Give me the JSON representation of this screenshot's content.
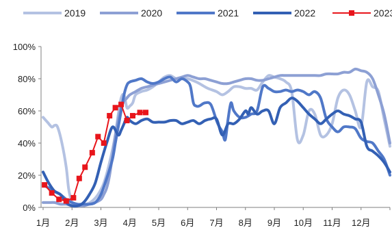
{
  "chart_data": {
    "type": "line",
    "title": "",
    "xlabel": "",
    "ylabel": "",
    "x_ticks": [
      "1月",
      "2月",
      "3月",
      "4月",
      "5月",
      "6月",
      "7月",
      "8月",
      "9月",
      "10月",
      "11月",
      "12月"
    ],
    "y_ticks": [
      "0%",
      "20%",
      "40%",
      "60%",
      "80%",
      "100%"
    ],
    "xlim": [
      0,
      12
    ],
    "ylim": [
      0,
      100
    ],
    "grid": false,
    "legend_position": "top",
    "series": [
      {
        "name": "2019",
        "color": "#b4c2e2",
        "marker": "none",
        "x": [
          0.0,
          0.15,
          0.3,
          0.4,
          0.5,
          0.65,
          0.8,
          0.88,
          0.95,
          1.0,
          1.05,
          1.1,
          1.2,
          1.3,
          1.5,
          1.7,
          1.9,
          2.1,
          2.3,
          2.5,
          2.6,
          2.7,
          2.8,
          2.9,
          3.0,
          3.1,
          3.2,
          3.4,
          3.6,
          3.8,
          4.0,
          4.2,
          4.4,
          4.6,
          4.8,
          5.0,
          5.3,
          5.5,
          5.7,
          6.0,
          6.2,
          6.4,
          6.6,
          6.8,
          7.0,
          7.2,
          7.4,
          7.6,
          7.8,
          8.0,
          8.2,
          8.4,
          8.6,
          8.8,
          9.0,
          9.2,
          9.4,
          9.6,
          9.8,
          10.0,
          10.2,
          10.4,
          10.6,
          10.8,
          11.0,
          11.2,
          11.4,
          11.6,
          11.8,
          12.0
        ],
        "y": [
          56,
          53,
          50,
          51,
          50,
          40,
          25,
          12,
          6,
          3,
          2,
          2,
          1,
          1,
          2,
          4,
          8,
          15,
          28,
          45,
          58,
          68,
          70,
          62,
          63,
          65,
          70,
          72,
          73,
          75,
          78,
          81,
          82,
          80,
          80,
          80,
          78,
          76,
          74,
          72,
          70,
          72,
          75,
          75,
          74,
          74,
          73,
          78,
          82,
          81,
          80,
          78,
          72,
          42,
          45,
          60,
          58,
          45,
          45,
          52,
          68,
          73,
          70,
          60,
          50,
          78,
          75,
          72,
          55,
          38
        ]
      },
      {
        "name": "2020",
        "color": "#8da0d4",
        "marker": "none",
        "x": [
          0.0,
          0.2,
          0.4,
          0.6,
          0.8,
          1.0,
          1.2,
          1.4,
          1.6,
          1.8,
          2.0,
          2.1,
          2.2,
          2.3,
          2.4,
          2.5,
          2.6,
          2.7,
          2.8,
          2.9,
          3.0,
          3.2,
          3.4,
          3.6,
          3.8,
          4.0,
          4.2,
          4.4,
          4.6,
          4.8,
          5.0,
          5.2,
          5.4,
          5.6,
          5.8,
          6.0,
          6.2,
          6.4,
          6.6,
          6.8,
          7.0,
          7.2,
          7.4,
          7.6,
          7.8,
          8.0,
          8.2,
          8.4,
          8.6,
          8.8,
          9.0,
          9.2,
          9.4,
          9.6,
          9.8,
          10.0,
          10.2,
          10.4,
          10.6,
          10.8,
          11.0,
          11.2,
          11.4,
          11.6,
          11.8,
          12.0
        ],
        "y": [
          3,
          3,
          3,
          2,
          2,
          1,
          1,
          1,
          2,
          3,
          5,
          8,
          12,
          20,
          32,
          45,
          55,
          62,
          66,
          68,
          70,
          72,
          74,
          75,
          76,
          77,
          78,
          79,
          80,
          81,
          82,
          81,
          80,
          80,
          79,
          78,
          77,
          77,
          78,
          79,
          80,
          80,
          79,
          79,
          80,
          81,
          82,
          82,
          82,
          82,
          82,
          82,
          82,
          82,
          83,
          83,
          83,
          84,
          84,
          86,
          85,
          84,
          80,
          70,
          58,
          40
        ]
      },
      {
        "name": "2021",
        "color": "#5078c8",
        "marker": "none",
        "x": [
          0.0,
          0.2,
          0.4,
          0.6,
          0.8,
          1.0,
          1.2,
          1.4,
          1.6,
          1.8,
          2.0,
          2.2,
          2.4,
          2.5,
          2.6,
          2.7,
          2.8,
          2.9,
          3.0,
          3.2,
          3.4,
          3.6,
          3.8,
          4.0,
          4.2,
          4.4,
          4.6,
          4.8,
          5.0,
          5.1,
          5.2,
          5.3,
          5.4,
          5.6,
          5.8,
          6.0,
          6.1,
          6.2,
          6.3,
          6.4,
          6.5,
          6.6,
          6.8,
          7.0,
          7.2,
          7.4,
          7.6,
          7.8,
          8.0,
          8.2,
          8.4,
          8.6,
          8.8,
          9.0,
          9.2,
          9.4,
          9.6,
          9.8,
          10.0,
          10.2,
          10.4,
          10.6,
          10.8,
          11.0,
          11.2,
          11.4,
          11.6,
          11.8,
          12.0
        ],
        "y": [
          14,
          12,
          10,
          8,
          5,
          3,
          2,
          2,
          2,
          3,
          8,
          18,
          30,
          40,
          50,
          60,
          70,
          76,
          78,
          79,
          80,
          78,
          77,
          78,
          80,
          81,
          78,
          80,
          78,
          75,
          65,
          63,
          63,
          65,
          64,
          54,
          50,
          47,
          42,
          55,
          65,
          60,
          56,
          56,
          58,
          60,
          75,
          74,
          72,
          72,
          73,
          72,
          73,
          72,
          70,
          72,
          68,
          55,
          50,
          47,
          50,
          50,
          49,
          43,
          41,
          40,
          35,
          30,
          20
        ]
      },
      {
        "name": "2022",
        "color": "#3360b4",
        "marker": "none",
        "x": [
          0.0,
          0.2,
          0.4,
          0.6,
          0.8,
          1.0,
          1.2,
          1.4,
          1.6,
          1.8,
          2.0,
          2.2,
          2.4,
          2.6,
          2.7,
          2.8,
          2.9,
          3.0,
          3.2,
          3.4,
          3.6,
          3.8,
          4.0,
          4.2,
          4.4,
          4.6,
          4.8,
          5.0,
          5.2,
          5.4,
          5.6,
          5.8,
          6.0,
          6.2,
          6.4,
          6.6,
          6.8,
          7.0,
          7.1,
          7.2,
          7.4,
          7.6,
          7.8,
          8.0,
          8.2,
          8.4,
          8.6,
          8.8,
          9.0,
          9.2,
          9.4,
          9.6,
          9.8,
          10.0,
          10.2,
          10.4,
          10.6,
          10.8,
          11.0,
          11.2,
          11.4,
          11.6,
          11.8,
          12.0
        ],
        "y": [
          22,
          15,
          10,
          8,
          3,
          1,
          1,
          3,
          8,
          15,
          28,
          40,
          50,
          45,
          48,
          52,
          56,
          54,
          52,
          54,
          55,
          53,
          53,
          53,
          54,
          54,
          52,
          53,
          54,
          52,
          54,
          55,
          55,
          45,
          52,
          52,
          55,
          60,
          58,
          62,
          58,
          60,
          60,
          52,
          62,
          65,
          68,
          66,
          62,
          58,
          55,
          52,
          55,
          58,
          60,
          58,
          57,
          55,
          53,
          38,
          35,
          32,
          28,
          22
        ]
      },
      {
        "name": "2023",
        "color": "#e8151b",
        "marker": "square",
        "x": [
          0.05,
          0.3,
          0.55,
          0.8,
          1.05,
          1.25,
          1.45,
          1.7,
          1.9,
          2.1,
          2.3,
          2.5,
          2.7,
          2.9,
          3.1,
          3.35,
          3.55
        ],
        "y": [
          14,
          9,
          5,
          4,
          6,
          18,
          25,
          34,
          44,
          40,
          57,
          62,
          64,
          54,
          57,
          59,
          59
        ]
      }
    ]
  }
}
